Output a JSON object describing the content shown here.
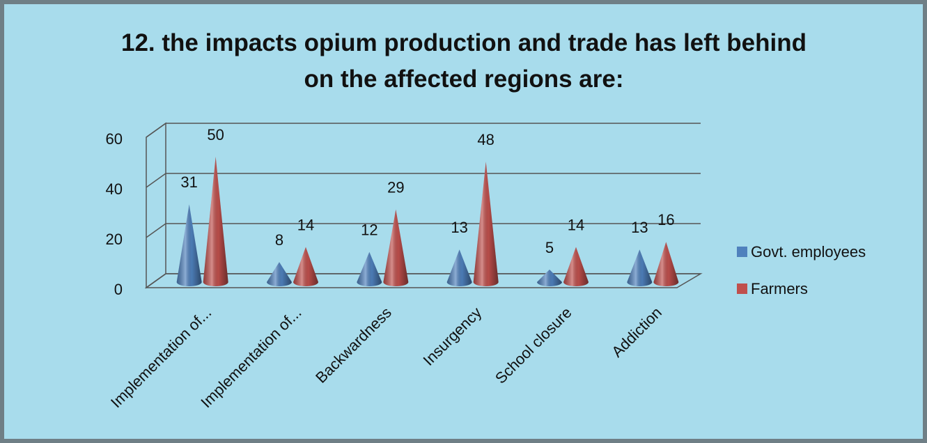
{
  "chart_data": {
    "type": "cone3d",
    "title": "12. the impacts opium production and trade has left behind on the affected regions are:",
    "categories": [
      "Implementation of...",
      "Implementation of...",
      "Backwardness",
      "Insurgency",
      "School closure",
      "Addiction"
    ],
    "series": [
      {
        "name": "Govt. employees",
        "color": "#4f81bd",
        "values": [
          31,
          8,
          12,
          13,
          5,
          13
        ]
      },
      {
        "name": "Farmers",
        "color": "#c0504d",
        "values": [
          50,
          14,
          29,
          48,
          14,
          16
        ]
      }
    ],
    "ylim": [
      0,
      60
    ],
    "yticks": [
      0,
      20,
      40,
      60
    ],
    "grid": true,
    "legend": "right"
  }
}
